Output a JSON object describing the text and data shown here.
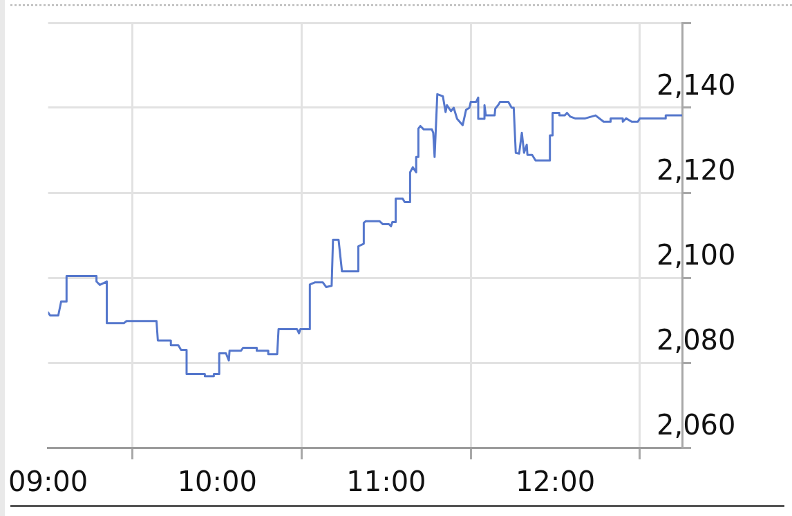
{
  "chart_data": {
    "type": "line",
    "color": "#5577cc",
    "marker": "none",
    "legend": false,
    "grid": true,
    "x": [
      9.0,
      9.012,
      9.06,
      9.077,
      9.109,
      9.109,
      9.286,
      9.286,
      9.306,
      9.347,
      9.347,
      9.448,
      9.464,
      9.641,
      9.649,
      9.726,
      9.726,
      9.77,
      9.786,
      9.819,
      9.819,
      9.927,
      9.927,
      9.98,
      9.98,
      10.012,
      10.012,
      10.052,
      10.069,
      10.073,
      10.141,
      10.153,
      10.234,
      10.234,
      10.302,
      10.302,
      10.355,
      10.363,
      10.472,
      10.484,
      10.492,
      10.548,
      10.548,
      10.577,
      10.625,
      10.645,
      10.677,
      10.685,
      10.718,
      10.738,
      10.835,
      10.835,
      10.867,
      10.867,
      10.879,
      10.96,
      10.98,
      11.016,
      11.028,
      11.036,
      11.056,
      11.056,
      11.097,
      11.109,
      11.141,
      11.141,
      11.157,
      11.177,
      11.177,
      11.19,
      11.19,
      11.202,
      11.222,
      11.27,
      11.278,
      11.286,
      11.302,
      11.335,
      11.351,
      11.359,
      11.383,
      11.399,
      11.419,
      11.452,
      11.472,
      11.492,
      11.5,
      11.532,
      11.544,
      11.544,
      11.581,
      11.581,
      11.589,
      11.641,
      11.645,
      11.665,
      11.673,
      11.722,
      11.742,
      11.754,
      11.766,
      11.786,
      11.802,
      11.815,
      11.831,
      11.835,
      11.863,
      11.883,
      11.968,
      11.968,
      11.984,
      11.984,
      12.024,
      12.024,
      12.056,
      12.069,
      12.089,
      12.117,
      12.177,
      12.238,
      12.286,
      12.327,
      12.327,
      12.399,
      12.399,
      12.419,
      12.452,
      12.488,
      12.5,
      12.653,
      12.653,
      12.75
    ],
    "values": [
      2091.8,
      2091.1,
      2091.1,
      2094.4,
      2094.4,
      2100.4,
      2100.4,
      2099.1,
      2098.3,
      2099.1,
      2089.3,
      2089.3,
      2089.8,
      2089.8,
      2085.2,
      2085.2,
      2084.1,
      2084.1,
      2083.0,
      2083.0,
      2077.3,
      2077.3,
      2076.8,
      2076.8,
      2077.3,
      2077.3,
      2082.2,
      2082.2,
      2080.5,
      2082.8,
      2082.8,
      2083.5,
      2083.5,
      2082.8,
      2082.8,
      2082.0,
      2082.0,
      2087.9,
      2087.9,
      2086.9,
      2087.9,
      2087.9,
      2098.4,
      2098.9,
      2098.9,
      2097.8,
      2098.1,
      2108.9,
      2108.9,
      2101.5,
      2101.5,
      2107.4,
      2108.0,
      2112.9,
      2113.3,
      2113.3,
      2112.6,
      2112.6,
      2112.1,
      2113.1,
      2113.1,
      2118.6,
      2118.6,
      2117.8,
      2117.8,
      2124.8,
      2126.0,
      2124.8,
      2128.4,
      2128.4,
      2135.1,
      2135.7,
      2134.9,
      2134.9,
      2134.1,
      2128.4,
      2143.2,
      2142.7,
      2139.0,
      2140.6,
      2139.2,
      2140.0,
      2137.4,
      2135.9,
      2139.5,
      2140.0,
      2141.4,
      2141.4,
      2142.4,
      2137.4,
      2137.4,
      2140.6,
      2138.2,
      2138.2,
      2139.8,
      2140.8,
      2141.4,
      2141.4,
      2140.0,
      2140.0,
      2129.4,
      2129.2,
      2134.1,
      2129.4,
      2131.3,
      2128.9,
      2128.9,
      2127.6,
      2127.6,
      2133.5,
      2133.5,
      2138.8,
      2138.8,
      2138.2,
      2138.2,
      2138.8,
      2137.9,
      2137.5,
      2137.5,
      2138.2,
      2136.7,
      2136.7,
      2137.5,
      2137.5,
      2136.7,
      2137.5,
      2136.7,
      2136.7,
      2137.5,
      2137.5,
      2138.2,
      2138.2
    ],
    "xlim": [
      9,
      12.75
    ],
    "xticks": [
      {
        "value": 9,
        "label": "09:00"
      },
      {
        "value": 9.5,
        "label": null
      },
      {
        "value": 10,
        "label": "10:00"
      },
      {
        "value": 10.5,
        "label": null
      },
      {
        "value": 11,
        "label": "11:00"
      },
      {
        "value": 11.5,
        "label": null
      },
      {
        "value": 12,
        "label": "12:00"
      },
      {
        "value": 12.5,
        "label": null
      }
    ],
    "ylim": [
      2060,
      2160
    ],
    "yticks": [
      {
        "value": 2060,
        "label": "2,060"
      },
      {
        "value": 2080,
        "label": "2,080"
      },
      {
        "value": 2100,
        "label": "2,100"
      },
      {
        "value": 2120,
        "label": "2,120"
      },
      {
        "value": 2140,
        "label": "2,140"
      },
      {
        "value": 2160,
        "label": null
      }
    ]
  }
}
